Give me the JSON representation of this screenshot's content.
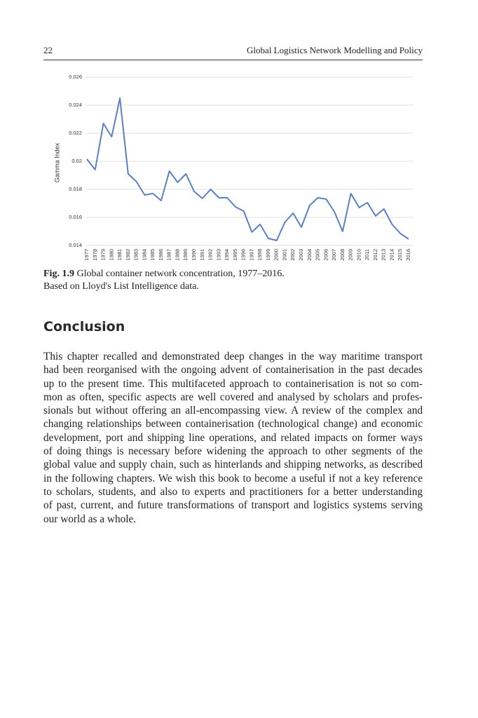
{
  "header": {
    "page_number": "22",
    "title": "Global Logistics Network Modelling and Policy"
  },
  "chart_data": {
    "type": "line",
    "y_label": "Gamma Index",
    "x": [
      1977,
      1978,
      1979,
      1980,
      1981,
      1982,
      1983,
      1984,
      1985,
      1986,
      1987,
      1988,
      1989,
      1990,
      1991,
      1992,
      1993,
      1994,
      1995,
      1996,
      1997,
      1998,
      1999,
      2000,
      2001,
      2002,
      2003,
      2004,
      2005,
      2006,
      2007,
      2008,
      2009,
      2010,
      2011,
      2012,
      2013,
      2014,
      2015,
      2016
    ],
    "values": [
      0.02015,
      0.0194,
      0.0227,
      0.02175,
      0.0245,
      0.0191,
      0.01855,
      0.0176,
      0.0177,
      0.0172,
      0.0193,
      0.0185,
      0.0191,
      0.01785,
      0.01735,
      0.018,
      0.0174,
      0.0174,
      0.01675,
      0.01645,
      0.01495,
      0.0155,
      0.0145,
      0.01435,
      0.01565,
      0.0163,
      0.0153,
      0.01685,
      0.0174,
      0.0173,
      0.0164,
      0.015,
      0.0177,
      0.0167,
      0.01705,
      0.0161,
      0.0166,
      0.0155,
      0.01485,
      0.01445
    ],
    "color": "#5b7fc4",
    "ylim": [
      0.014,
      0.026
    ],
    "yticks": [
      {
        "value": 0.026,
        "label": "0.026"
      },
      {
        "value": 0.024,
        "label": "0.024"
      },
      {
        "value": 0.022,
        "label": "0.022"
      },
      0.02,
      {
        "value": 0.018,
        "label": "0.018"
      },
      {
        "value": 0.016,
        "label": "0.016"
      },
      {
        "value": 0.014,
        "label": "0.014"
      }
    ],
    "grid": true
  },
  "caption": {
    "label": "Fig. 1.9",
    "text": "Global container network concentration, 1977–2016.",
    "source": "Based on Lloyd's List Intelligence data."
  },
  "section": {
    "heading": "Conclusion",
    "lines": [
      "This chapter recalled and demonstrated deep changes in the way maritime transport",
      "had been reorganised with the ongoing advent of containerisation in the past decades",
      "up to the present time. This multifaceted approach to containerisation is not so com-",
      "mon as often, specific aspects are well covered and analysed by scholars and profes-",
      "sionals but without offering an all-encompassing view. A review of the complex and",
      "changing relationships between containerisation (technological change) and economic",
      "development, port and shipping line operations, and related impacts on former ways",
      "of doing things is necessary before widening the approach to other segments of the",
      "global value and supply chain, such as hinterlands and shipping networks, as described",
      "in the following chapters. We wish this book to become a useful if not a key reference",
      "to scholars, students, and also to experts and practitioners for a better understanding",
      "of past, current, and future transformations of transport and logistics systems serving",
      "our world as a whole."
    ]
  }
}
